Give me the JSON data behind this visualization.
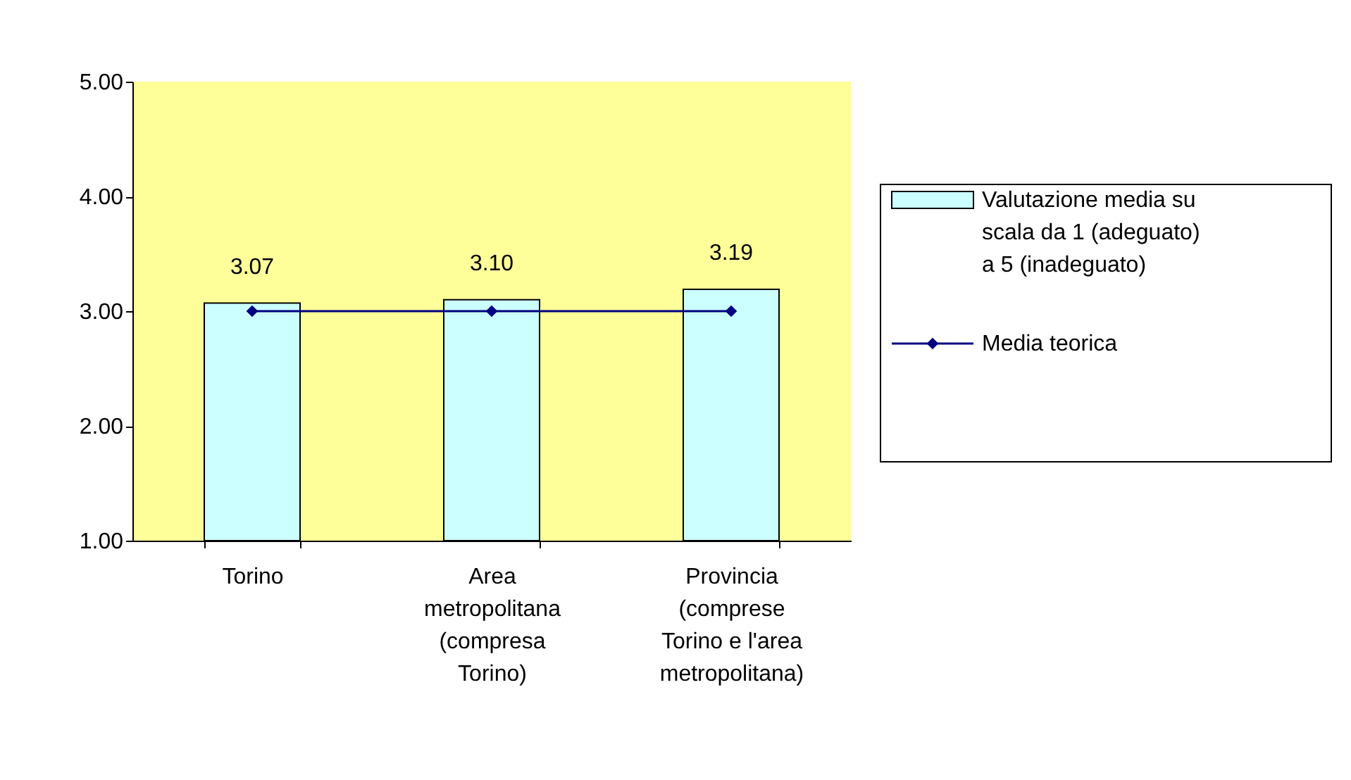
{
  "chart_data": {
    "type": "bar",
    "categories": [
      "Torino",
      "Area metropolitana (compresa Torino)",
      "Provincia (comprese Torino e l'area metropolitana)"
    ],
    "series": [
      {
        "name": "Valutazione media su scala da 1 (adeguato) a 5 (inadeguato)",
        "color": "#ccffff",
        "values": [
          3.07,
          3.1,
          3.19
        ],
        "value_labels": [
          "3.07",
          "3.10",
          "3.19"
        ]
      },
      {
        "name": "Media teorica",
        "type": "line",
        "color": "#000080",
        "values": [
          3.0,
          3.0,
          3.0
        ]
      }
    ],
    "ylim": [
      1,
      5
    ],
    "yticks": [
      {
        "value": 1,
        "label": "1.00"
      },
      {
        "value": 2,
        "label": "2.00"
      },
      {
        "value": 3,
        "label": "3.00"
      },
      {
        "value": 4,
        "label": "4.00"
      },
      {
        "value": 5,
        "label": "5.00"
      }
    ],
    "grid": false,
    "legend": "right",
    "marker": "diamond",
    "line_style": "solid"
  }
}
